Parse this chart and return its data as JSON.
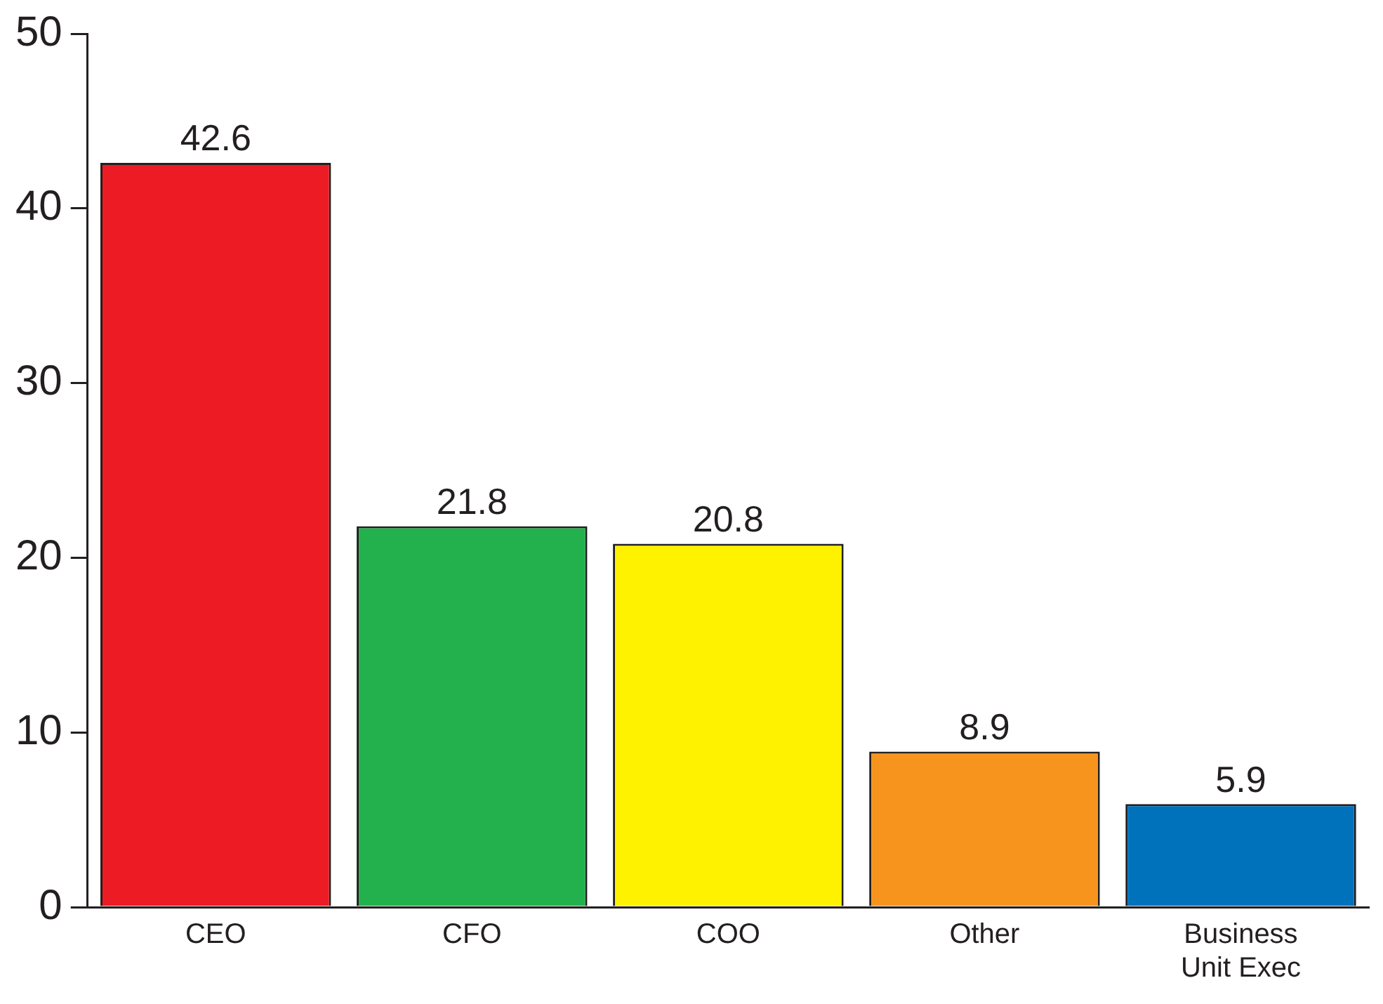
{
  "chart_data": {
    "type": "bar",
    "categories": [
      "CEO",
      "CFO",
      "COO",
      "Other",
      "Business Unit Exec"
    ],
    "values": [
      42.6,
      21.8,
      20.8,
      8.9,
      5.9
    ],
    "colors": [
      "#ed1c24",
      "#22b14c",
      "#fff200",
      "#f7941d",
      "#0072bc"
    ],
    "ylim": [
      0,
      50
    ],
    "yticks": [
      0,
      10,
      20,
      30,
      40,
      50
    ],
    "grid": false,
    "legend": false,
    "data_labels": true
  }
}
